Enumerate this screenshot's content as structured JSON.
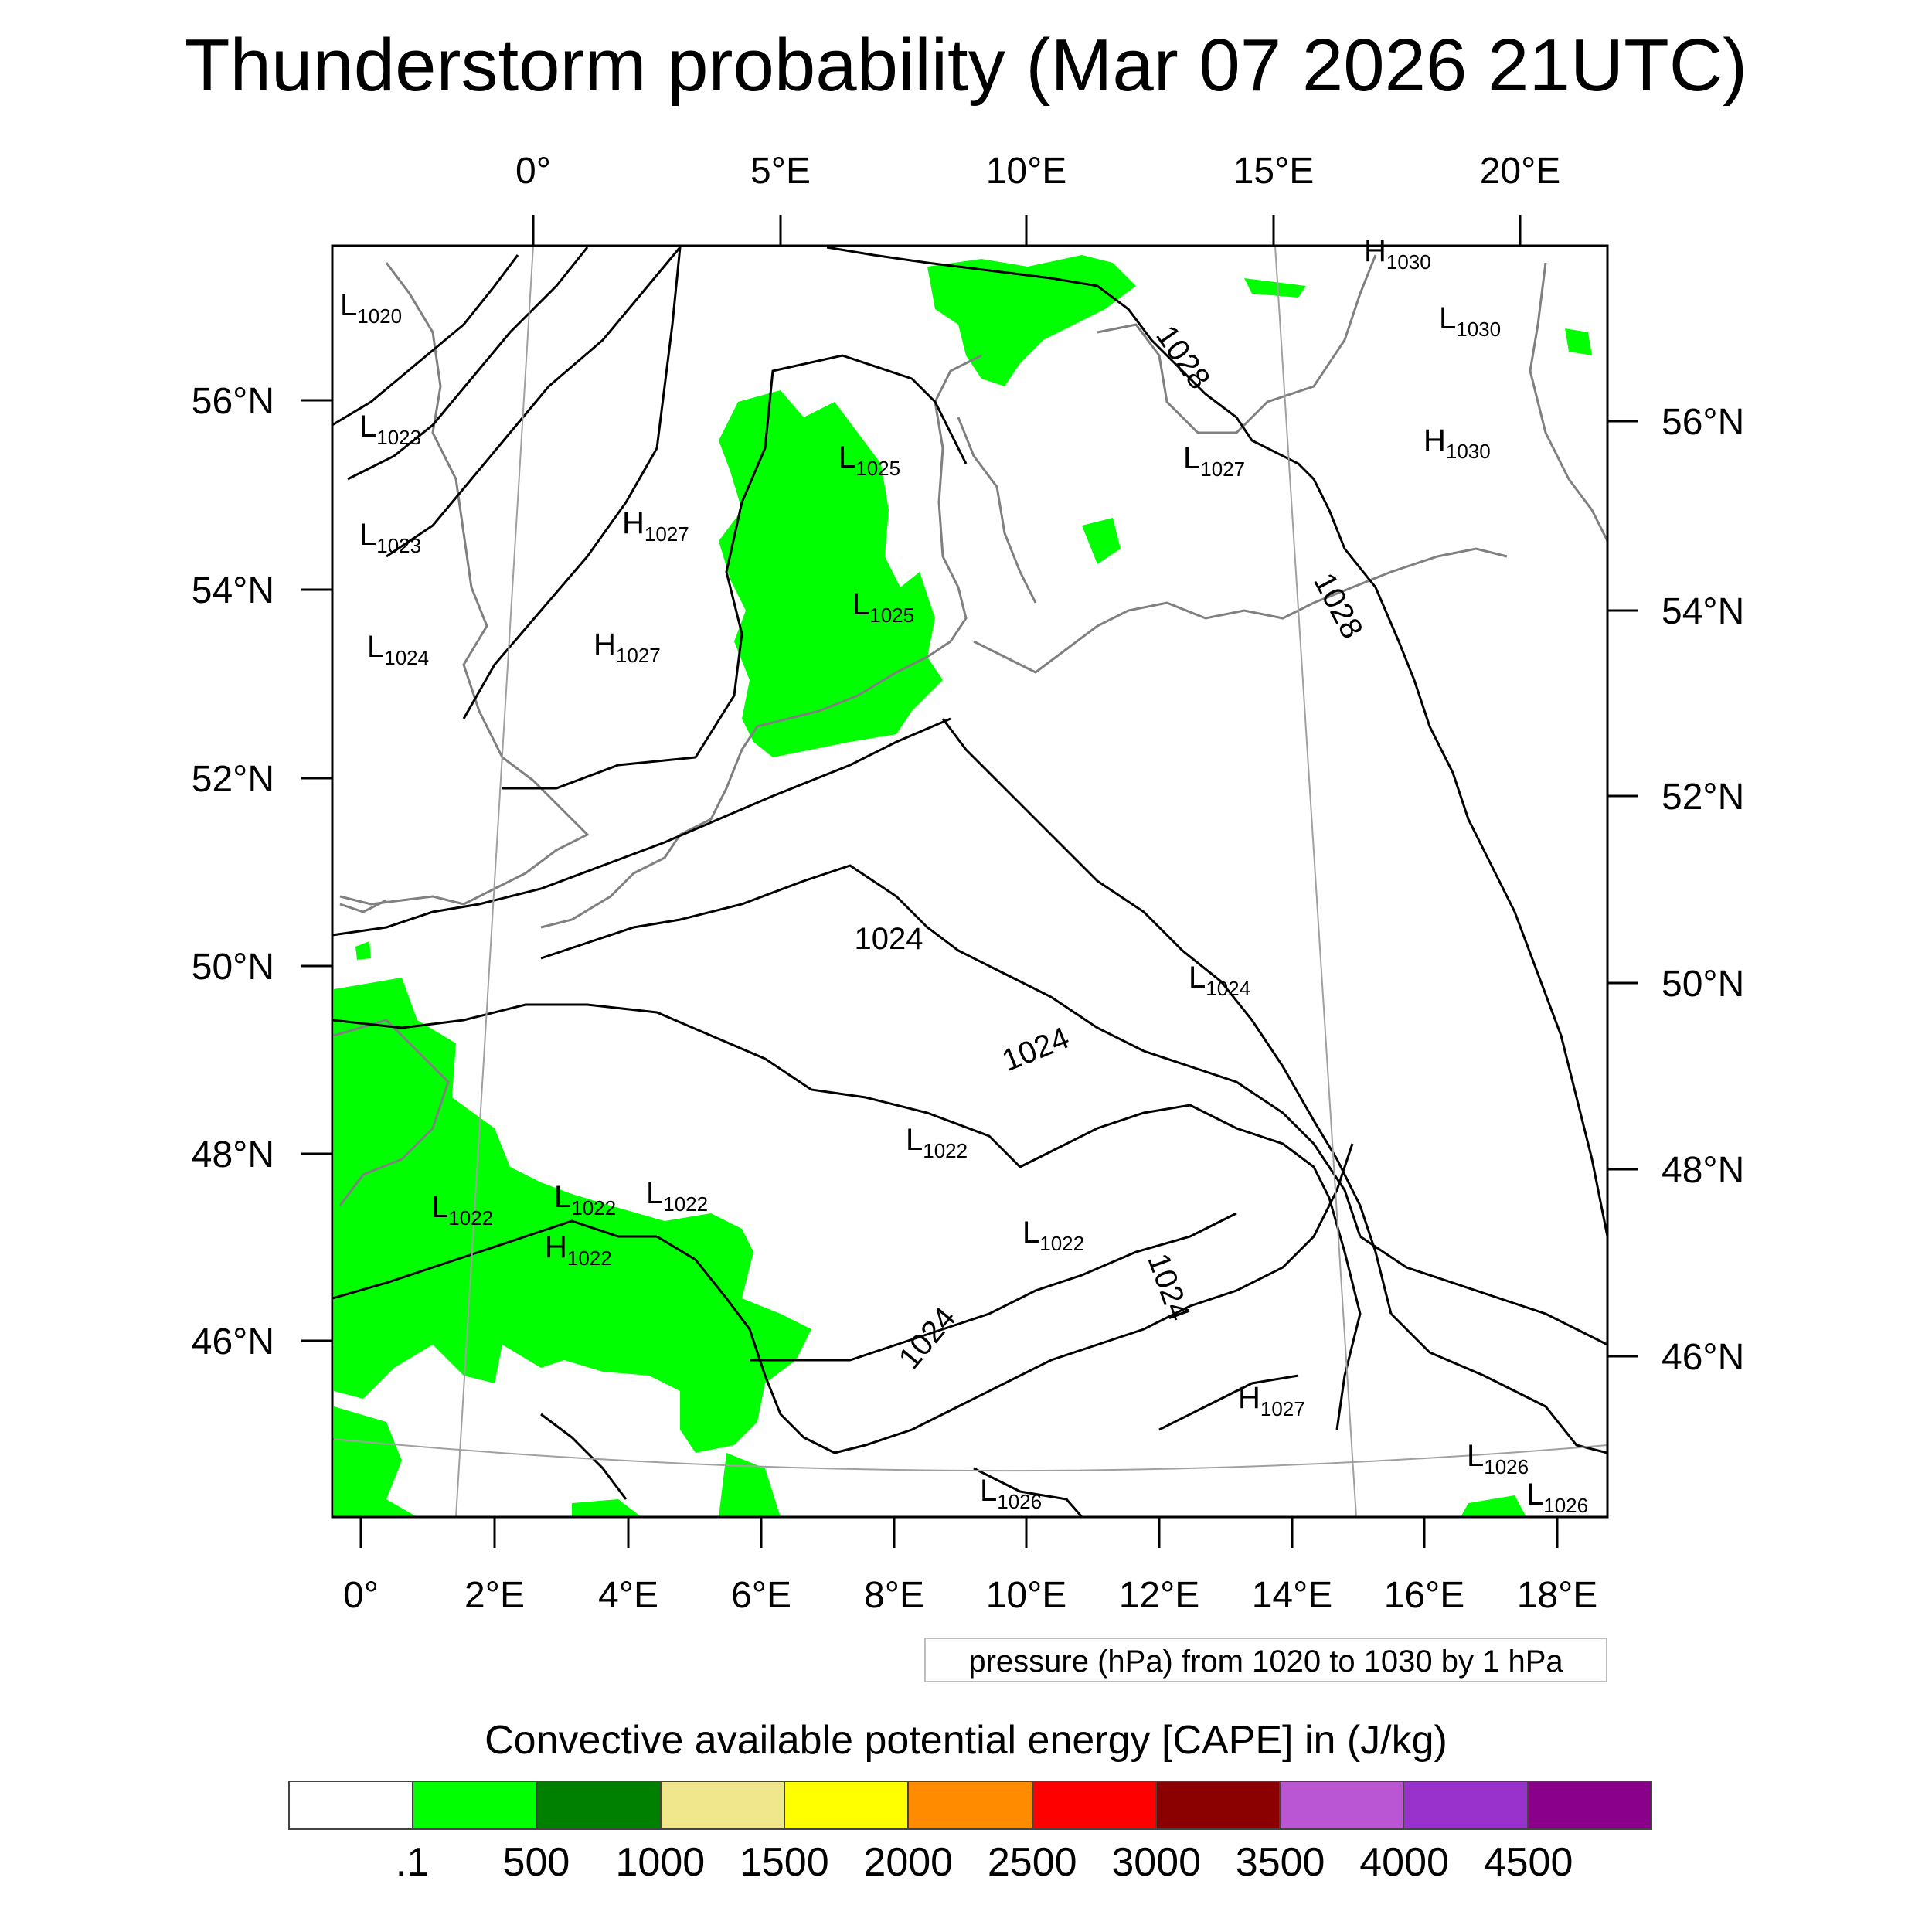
{
  "title": "Thunderstorm probability (Mar 07 2026 21UTC)",
  "top_lon_labels": [
    "0°",
    "5°E",
    "10°E",
    "15°E",
    "20°E"
  ],
  "bottom_lon_labels": [
    "0°",
    "2°E",
    "4°E",
    "6°E",
    "8°E",
    "10°E",
    "12°E",
    "14°E",
    "16°E",
    "18°E"
  ],
  "left_lat_labels": [
    "56°N",
    "54°N",
    "52°N",
    "50°N",
    "48°N",
    "46°N"
  ],
  "right_lat_labels": [
    "56°N",
    "54°N",
    "52°N",
    "50°N",
    "48°N",
    "46°N"
  ],
  "pressure_centers": [
    {
      "type": "L",
      "value": "1020"
    },
    {
      "type": "L",
      "value": "1023"
    },
    {
      "type": "L",
      "value": "1023"
    },
    {
      "type": "L",
      "value": "1024"
    },
    {
      "type": "H",
      "value": "1027"
    },
    {
      "type": "H",
      "value": "1027"
    },
    {
      "type": "L",
      "value": "1025"
    },
    {
      "type": "L",
      "value": "1025"
    },
    {
      "type": "H",
      "value": "1030"
    },
    {
      "type": "L",
      "value": "1030"
    },
    {
      "type": "H",
      "value": "1030"
    },
    {
      "type": "L",
      "value": "1027"
    },
    {
      "type": "L",
      "value": "1024"
    },
    {
      "type": "L",
      "value": "1022"
    },
    {
      "type": "L",
      "value": "1022"
    },
    {
      "type": "L",
      "value": "1022"
    },
    {
      "type": "L",
      "value": "1022"
    },
    {
      "type": "H",
      "value": "1022"
    },
    {
      "type": "L",
      "value": "1022"
    },
    {
      "type": "H",
      "value": "1027"
    },
    {
      "type": "L",
      "value": "1026"
    },
    {
      "type": "L",
      "value": "1026"
    },
    {
      "type": "L",
      "value": "1026"
    }
  ],
  "contour_labels": [
    "1028",
    "1028",
    "1024",
    "1024",
    "1024",
    "1024"
  ],
  "legend_note": "pressure (hPa) from 1020 to 1030 by 1 hPa",
  "colorbar": {
    "title": "Convective available potential energy [CAPE] in (J/kg)",
    "colors": [
      "#ffffff",
      "#00ff00",
      "#008000",
      "#f0e68c",
      "#ffff00",
      "#ff8c00",
      "#ff0000",
      "#8b0000",
      "#ba55d3",
      "#9932cc",
      "#8b008b"
    ],
    "tick_labels": [
      ".1",
      "500",
      "1000",
      "1500",
      "2000",
      "2500",
      "3000",
      "3500",
      "4000",
      "4500"
    ]
  },
  "colors": {
    "cape_low": "#00ff00",
    "coastline": "#808080",
    "isobar": "#000000"
  }
}
